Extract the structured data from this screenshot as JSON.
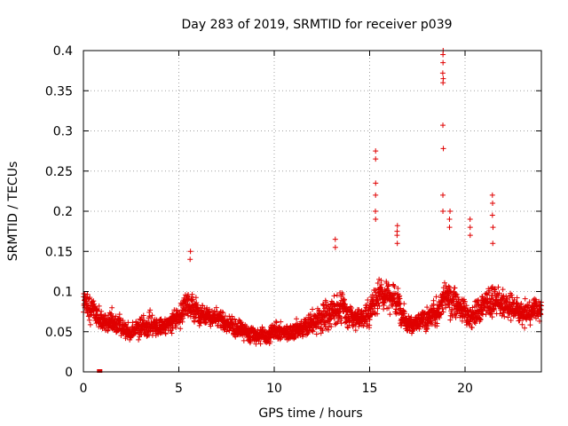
{
  "chart_data": {
    "type": "scatter",
    "title": "Day 283 of 2019, SRMTID for receiver p039",
    "xlabel": "GPS time / hours",
    "ylabel": "SRMTID / TECUs",
    "xlim": [
      0,
      24
    ],
    "ylim": [
      0,
      0.4
    ],
    "xticks": [
      0,
      5,
      10,
      15,
      20
    ],
    "xtick_labels": [
      "0",
      "5",
      "10",
      "15",
      "20"
    ],
    "yticks": [
      0,
      0.05,
      0.1,
      0.15,
      0.2,
      0.25,
      0.3,
      0.35,
      0.4
    ],
    "ytick_labels": [
      "0",
      "0.05",
      "0.1",
      "0.15",
      "0.2",
      "0.25",
      "0.3",
      "0.35",
      "0.4"
    ],
    "grid": true,
    "marker": "plus",
    "color": "#e00000",
    "series": [
      {
        "name": "SRMTID",
        "profile": {
          "x": [
            0,
            0.5,
            1,
            1.5,
            2,
            2.5,
            3,
            3.5,
            4,
            4.5,
            5,
            5.5,
            6,
            6.5,
            7,
            7.5,
            8,
            8.5,
            9,
            9.5,
            10,
            10.5,
            11,
            11.5,
            12,
            12.5,
            13,
            13.5,
            14,
            14.5,
            15,
            15.5,
            16,
            16.5,
            17,
            17.5,
            18,
            18.5,
            19,
            19.5,
            20,
            20.5,
            21,
            21.5,
            22,
            22.5,
            23,
            23.5,
            24
          ],
          "y": [
            0.095,
            0.075,
            0.06,
            0.065,
            0.055,
            0.05,
            0.055,
            0.06,
            0.055,
            0.06,
            0.07,
            0.085,
            0.075,
            0.07,
            0.065,
            0.06,
            0.055,
            0.05,
            0.045,
            0.045,
            0.05,
            0.05,
            0.05,
            0.055,
            0.06,
            0.065,
            0.075,
            0.08,
            0.07,
            0.065,
            0.075,
            0.1,
            0.095,
            0.085,
            0.06,
            0.06,
            0.065,
            0.075,
            0.095,
            0.085,
            0.075,
            0.07,
            0.085,
            0.09,
            0.085,
            0.08,
            0.07,
            0.075,
            0.08
          ],
          "spread": [
            0.03,
            0.025,
            0.02,
            0.02,
            0.02,
            0.02,
            0.02,
            0.025,
            0.02,
            0.02,
            0.025,
            0.03,
            0.025,
            0.02,
            0.02,
            0.02,
            0.02,
            0.018,
            0.018,
            0.018,
            0.018,
            0.018,
            0.02,
            0.02,
            0.025,
            0.03,
            0.035,
            0.03,
            0.025,
            0.025,
            0.03,
            0.035,
            0.03,
            0.03,
            0.02,
            0.02,
            0.025,
            0.03,
            0.035,
            0.03,
            0.025,
            0.025,
            0.03,
            0.035,
            0.03,
            0.025,
            0.025,
            0.025,
            0.03
          ]
        },
        "points_per_hour": 110,
        "spikes": [
          {
            "x": 15.3,
            "y": [
              0.19,
              0.2,
              0.22,
              0.235,
              0.265,
              0.275
            ]
          },
          {
            "x": 16.45,
            "y": [
              0.16,
              0.17,
              0.175,
              0.182
            ]
          },
          {
            "x": 18.85,
            "y": [
              0.2,
              0.22,
              0.278,
              0.307,
              0.36,
              0.365,
              0.372,
              0.385,
              0.395,
              0.4
            ]
          },
          {
            "x": 19.2,
            "y": [
              0.18,
              0.19,
              0.2
            ]
          },
          {
            "x": 20.25,
            "y": [
              0.17,
              0.18,
              0.19
            ]
          },
          {
            "x": 21.45,
            "y": [
              0.16,
              0.18,
              0.195,
              0.21,
              0.22
            ]
          },
          {
            "x": 13.2,
            "y": [
              0.155,
              0.165
            ]
          },
          {
            "x": 5.6,
            "y": [
              0.14,
              0.15
            ]
          }
        ],
        "outliers": [
          {
            "x": 0.85,
            "y": 0.0
          }
        ]
      }
    ]
  }
}
